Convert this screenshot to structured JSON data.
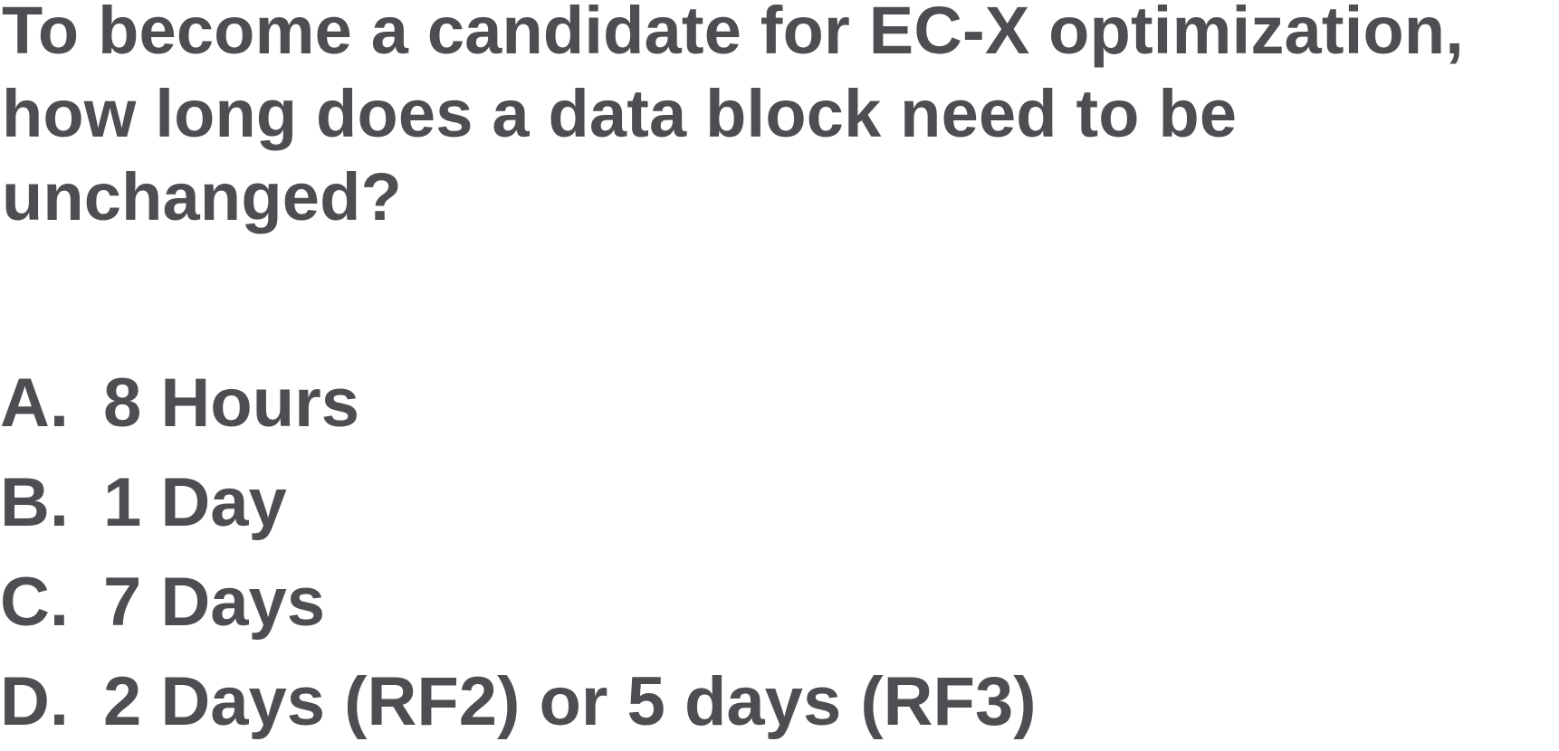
{
  "question": "To become a candidate for EC-X optimization, how long does a data block need to be unchanged?",
  "options": [
    {
      "letter": "A.",
      "text": "8 Hours"
    },
    {
      "letter": "B.",
      "text": "1 Day"
    },
    {
      "letter": "C.",
      "text": "7 Days"
    },
    {
      "letter": "D.",
      "text": "2 Days (RF2) or 5 days (RF3)"
    }
  ],
  "colors": {
    "text": "#4d4e51",
    "background": "#ffffff"
  }
}
